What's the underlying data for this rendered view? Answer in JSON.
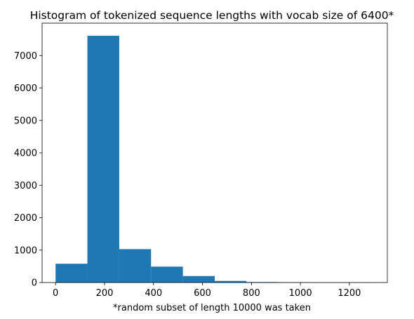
{
  "chart_data": {
    "type": "bar",
    "subtype": "histogram",
    "title": "Histogram of tokenized sequence lengths with vocab size of 6400*",
    "xlabel": "*random subset of length 10000 was taken",
    "ylabel": "",
    "xlim": [
      -55,
      1355
    ],
    "ylim": [
      0,
      8000
    ],
    "bins": [
      {
        "start": 0,
        "end": 130,
        "count": 580
      },
      {
        "start": 130,
        "end": 260,
        "count": 7610
      },
      {
        "start": 260,
        "end": 390,
        "count": 1030
      },
      {
        "start": 390,
        "end": 520,
        "count": 490
      },
      {
        "start": 520,
        "end": 650,
        "count": 200
      },
      {
        "start": 650,
        "end": 780,
        "count": 50
      },
      {
        "start": 780,
        "end": 910,
        "count": 15
      },
      {
        "start": 910,
        "end": 1040,
        "count": 10
      },
      {
        "start": 1040,
        "end": 1170,
        "count": 4
      },
      {
        "start": 1170,
        "end": 1300,
        "count": 2
      }
    ],
    "xticks": [
      0,
      200,
      400,
      600,
      800,
      1000,
      1200
    ],
    "yticks": [
      0,
      1000,
      2000,
      3000,
      4000,
      5000,
      6000,
      7000
    ],
    "bar_color": "#1f77b4"
  }
}
